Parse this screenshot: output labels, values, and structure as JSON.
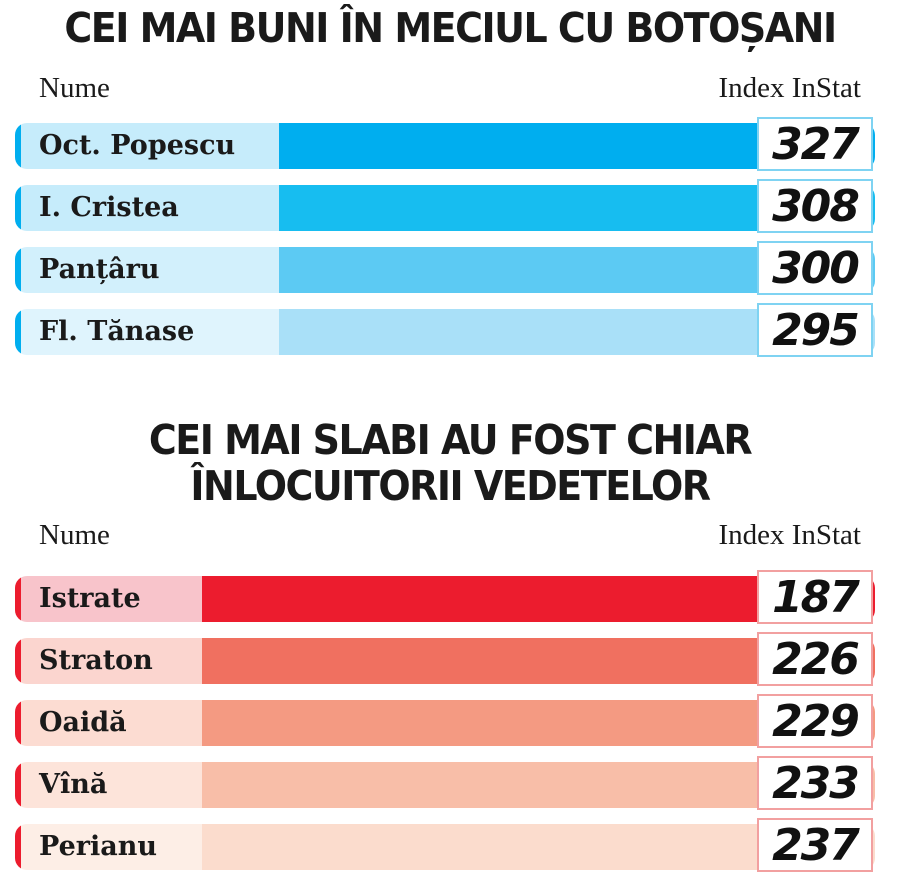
{
  "chart_data": [
    {
      "type": "bar",
      "title": "CEI MAI BUNI ÎN MECIUL CU BOTOȘANI",
      "xlabel": "Nume",
      "ylabel": "Index InStat",
      "categories": [
        "Oct. Popescu",
        "I. Cristea",
        "Panțâru",
        "Fl. Tănase"
      ],
      "values": [
        327,
        308,
        300,
        295
      ],
      "colors": [
        "#00aeef",
        "#17bdf0",
        "#5ccaf3",
        "#a9e0f8"
      ],
      "label_colors": [
        "#c6ecfb",
        "#c6ecfb",
        "#d2f0fc",
        "#dff4fd"
      ],
      "tick_color": "#00aeef",
      "border_color": "#7fd3f2"
    },
    {
      "type": "bar",
      "title_lines": [
        "CEI MAI SLABI AU FOST CHIAR",
        "ÎNLOCUITORII VEDETELOR"
      ],
      "xlabel": "Nume",
      "ylabel": "Index InStat",
      "categories": [
        "Istrate",
        "Straton",
        "Oaidă",
        "Vînă",
        "Perianu"
      ],
      "values": [
        187,
        226,
        229,
        233,
        237
      ],
      "colors": [
        "#ec1c2e",
        "#f07060",
        "#f49a82",
        "#f8bea8",
        "#fbdccd"
      ],
      "label_colors": [
        "#f8c4cb",
        "#fbd5cf",
        "#fcdcd2",
        "#fde4da",
        "#fdeee6"
      ],
      "tick_color": "#ec1c2e",
      "border_color": "#f2a0a0"
    }
  ]
}
